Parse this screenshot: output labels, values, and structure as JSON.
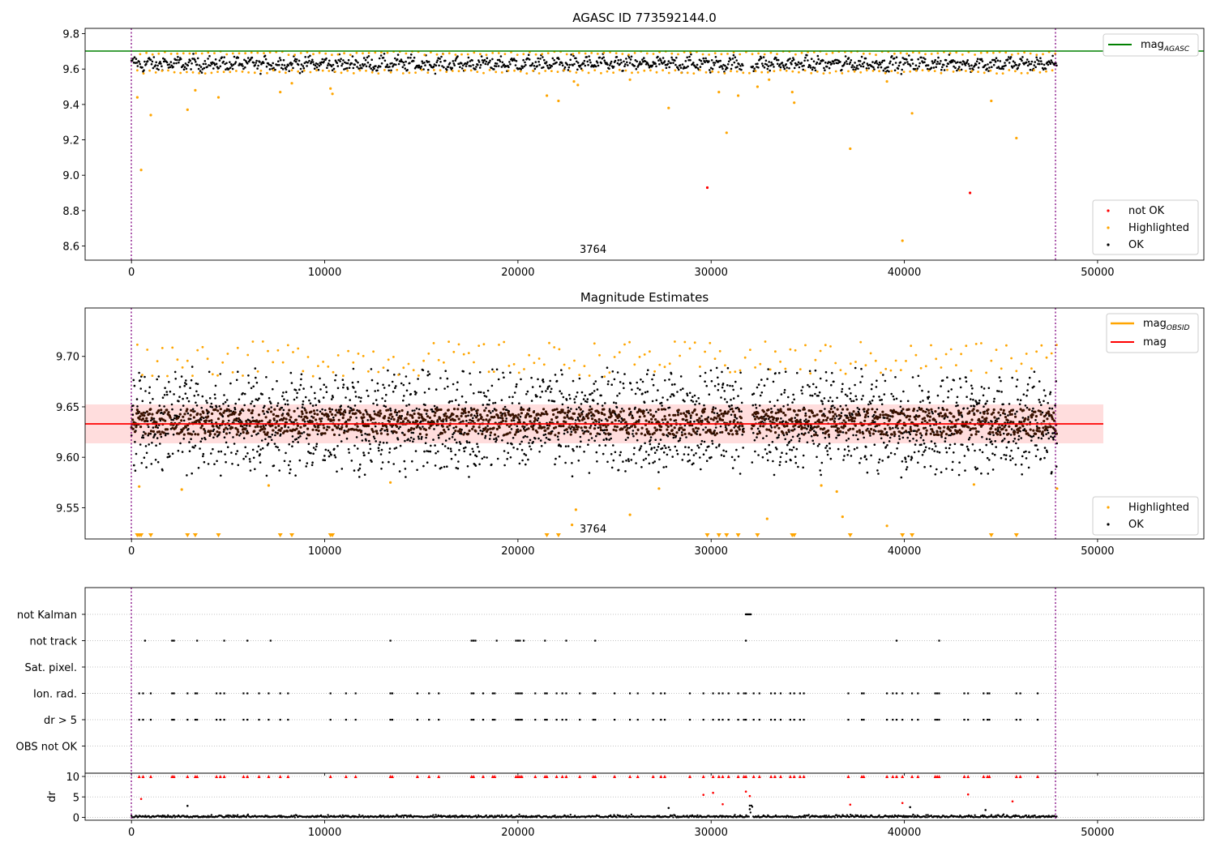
{
  "chart_data": [
    {
      "type": "scatter",
      "title": "AGASC ID 773592144.0",
      "xlim": [
        -2400,
        55500
      ],
      "ylim": [
        8.52,
        9.83
      ],
      "xticks": [
        0,
        10000,
        20000,
        30000,
        40000,
        50000
      ],
      "yticks": [
        8.6,
        8.8,
        9.0,
        9.2,
        9.4,
        9.6,
        9.8
      ],
      "ytick_labels": [
        "8.6",
        "8.8",
        "9.0",
        "9.2",
        "9.4",
        "9.6",
        "9.8"
      ],
      "grid": false,
      "annotation": {
        "text": "3764",
        "x": 23200
      },
      "vlines": {
        "x": [
          0,
          47900
        ],
        "style": "dotted",
        "color": "#800080"
      },
      "hline": {
        "name": "mag_AGASC",
        "label_main": "mag",
        "label_sub": "AGASC",
        "y": 9.7,
        "color": "#008000"
      },
      "ok_band": {
        "center": 9.63,
        "amp": 0.025,
        "noise": 0.018
      },
      "points_highlighted": [
        [
          500,
          9.03
        ],
        [
          1000,
          9.34
        ],
        [
          2900,
          9.37
        ],
        [
          3300,
          9.48
        ],
        [
          4500,
          9.44
        ],
        [
          7700,
          9.47
        ],
        [
          8300,
          9.52
        ],
        [
          10300,
          9.49
        ],
        [
          10400,
          9.46
        ],
        [
          21500,
          9.45
        ],
        [
          22100,
          9.42
        ],
        [
          22900,
          9.53
        ],
        [
          23100,
          9.51
        ],
        [
          25800,
          9.54
        ],
        [
          27800,
          9.38
        ],
        [
          30400,
          9.47
        ],
        [
          30800,
          9.24
        ],
        [
          31400,
          9.45
        ],
        [
          32400,
          9.5
        ],
        [
          33000,
          9.54
        ],
        [
          34200,
          9.47
        ],
        [
          34300,
          9.41
        ],
        [
          37200,
          9.15
        ],
        [
          39100,
          9.53
        ],
        [
          39900,
          8.63
        ],
        [
          40400,
          9.35
        ],
        [
          44500,
          9.42
        ],
        [
          45800,
          9.21
        ],
        [
          300,
          9.44
        ]
      ],
      "points_not_ok": [
        [
          29800,
          8.93
        ],
        [
          43400,
          8.9
        ]
      ],
      "legend_upper": {
        "position": "upper-right",
        "entries": [
          "mag_AGASC"
        ]
      },
      "legend_lower": {
        "position": "lower-right",
        "entries": [
          "not OK",
          "Highlighted",
          "OK"
        ]
      },
      "colors": {
        "ok": "#000000",
        "highlighted": "#ffa500",
        "not_ok": "#ff0000"
      }
    },
    {
      "type": "scatter",
      "title": "Magnitude Estimates",
      "xlim": [
        -2400,
        55500
      ],
      "ylim": [
        9.519,
        9.748
      ],
      "xticks": [
        0,
        10000,
        20000,
        30000,
        40000,
        50000
      ],
      "yticks": [
        9.55,
        9.6,
        9.65,
        9.7
      ],
      "ytick_labels": [
        "9.55",
        "9.60",
        "9.65",
        "9.70"
      ],
      "grid": false,
      "annotation": {
        "text": "3764",
        "x": 23200
      },
      "vlines": {
        "x": [
          0,
          47900
        ],
        "style": "dotted",
        "color": "#800080"
      },
      "mag_line": {
        "name": "mag",
        "y": 9.634,
        "color": "#ff0000",
        "x_range": [
          -2400,
          50300
        ]
      },
      "mag_band": {
        "y_range": [
          9.615,
          9.654
        ],
        "color": "#ffdddd",
        "x_range": [
          -2400,
          50300
        ]
      },
      "mag_obsid": {
        "name": "mag_OBSID",
        "label_main": "mag",
        "label_sub": "OBSID",
        "color": "#ffa500"
      },
      "ok_band": {
        "center": 9.635,
        "amp": 0.03,
        "noise": 0.022
      },
      "points_highlighted": [
        [
          400,
          9.571
        ],
        [
          2600,
          9.568
        ],
        [
          7100,
          9.572
        ],
        [
          13400,
          9.575
        ],
        [
          23000,
          9.548
        ],
        [
          22800,
          9.533
        ],
        [
          25800,
          9.543
        ],
        [
          27300,
          9.569
        ],
        [
          32900,
          9.539
        ],
        [
          35700,
          9.572
        ],
        [
          36500,
          9.566
        ],
        [
          36800,
          9.541
        ],
        [
          39100,
          9.532
        ],
        [
          43600,
          9.573
        ],
        [
          47900,
          9.569
        ]
      ],
      "off_scale_markers_x": [
        300,
        400,
        500,
        1000,
        2900,
        3300,
        4500,
        7700,
        8300,
        10300,
        10400,
        21500,
        22100,
        29800,
        30400,
        30800,
        31400,
        32400,
        34200,
        34300,
        37200,
        39900,
        40400,
        44500,
        45800
      ],
      "legend_upper": {
        "position": "upper-right",
        "entries": [
          "mag_OBSID",
          "mag"
        ]
      },
      "legend_lower": {
        "position": "lower-right",
        "entries": [
          "Highlighted",
          "OK"
        ]
      },
      "colors": {
        "ok": "#000000",
        "highlighted": "#ffa500",
        "ok_core": "#3a1200"
      }
    },
    {
      "type": "scatter",
      "title": "",
      "xlim": [
        -2400,
        55500
      ],
      "xticks": [
        0,
        10000,
        20000,
        30000,
        40000,
        50000
      ],
      "grid": true,
      "vlines": {
        "x": [
          0,
          47900
        ],
        "style": "dotted",
        "color": "#800080"
      },
      "flag_categories": [
        "not Kalman",
        "not track",
        "Sat. pixel.",
        "Ion. rad.",
        "dr > 5",
        "OBS not OK"
      ],
      "flag_points": {
        "not Kalman": [
          31800,
          31850,
          31900,
          31950,
          32000,
          32050
        ],
        "not track": [
          700,
          2100,
          2200,
          3400,
          4800,
          6000,
          7200,
          13400,
          17600,
          17700,
          17800,
          18900,
          19900,
          20000,
          20100,
          20300,
          21400,
          22500,
          24000,
          31800,
          39600,
          41800
        ],
        "Sat. pixel.": [],
        "Ion. rad.": [
          400,
          600,
          1000,
          2100,
          2200,
          2900,
          3300,
          3400,
          4400,
          4600,
          4800,
          5800,
          6000,
          6600,
          7100,
          7700,
          8100,
          10300,
          11100,
          11600,
          13400,
          13500,
          14800,
          15400,
          15900,
          17600,
          17700,
          18200,
          18700,
          18800,
          19900,
          20000,
          20100,
          20200,
          20900,
          21400,
          21500,
          22000,
          22300,
          22500,
          23200,
          23900,
          24000,
          25000,
          25800,
          26200,
          27000,
          27400,
          27600,
          28900,
          29600,
          30100,
          30400,
          30600,
          30900,
          31400,
          31700,
          31800,
          32200,
          32500,
          33100,
          33300,
          33600,
          34100,
          34300,
          34600,
          34800,
          37100,
          37800,
          37900,
          39100,
          39400,
          39600,
          39900,
          40400,
          40700,
          41600,
          41700,
          41800,
          43100,
          43300,
          44100,
          44300,
          44400,
          45800,
          46000,
          46900
        ],
        "dr > 5": [
          400,
          600,
          1000,
          2100,
          2200,
          2900,
          3300,
          3400,
          4400,
          4600,
          4800,
          5800,
          6000,
          6600,
          7100,
          7700,
          8100,
          10300,
          11100,
          11600,
          13400,
          13500,
          14800,
          15400,
          15900,
          17600,
          17700,
          18200,
          18700,
          18800,
          19900,
          20000,
          20100,
          20200,
          20900,
          21400,
          21500,
          22000,
          22300,
          22500,
          23200,
          23900,
          24000,
          25000,
          25800,
          26200,
          27000,
          27400,
          27600,
          28900,
          29600,
          30100,
          30400,
          30600,
          30900,
          31400,
          31700,
          31800,
          32200,
          32500,
          33100,
          33300,
          33600,
          34100,
          34300,
          34600,
          34800,
          37100,
          37800,
          37900,
          39100,
          39400,
          39600,
          39900,
          40400,
          40700,
          41600,
          41700,
          41800,
          43100,
          43300,
          44100,
          44300,
          44400,
          45800,
          46000,
          46900
        ],
        "OBS not OK": []
      },
      "colors": {
        "flag": "#000000"
      }
    },
    {
      "type": "scatter",
      "title": "",
      "ylabel": "dr",
      "xlim": [
        -2400,
        55500
      ],
      "ylim": [
        -0.7,
        10.8
      ],
      "xticks": [
        0,
        10000,
        20000,
        30000,
        40000,
        50000
      ],
      "xtick_labels": [
        "0",
        "10000",
        "20000",
        "30000",
        "40000",
        "50000"
      ],
      "yticks": [
        0,
        5,
        10
      ],
      "ytick_labels": [
        "0",
        "5",
        "10"
      ],
      "grid": true,
      "vlines": {
        "x": [
          0,
          47900
        ],
        "style": "dotted",
        "color": "#800080"
      },
      "clipped_markers_x": [
        400,
        600,
        1000,
        2100,
        2200,
        2900,
        3300,
        3400,
        4400,
        4600,
        4800,
        5800,
        6000,
        6600,
        7100,
        7700,
        8100,
        10300,
        11100,
        11600,
        13400,
        13500,
        14800,
        15400,
        15900,
        17600,
        17700,
        18200,
        18700,
        18800,
        19900,
        20000,
        20100,
        20200,
        20900,
        21400,
        21500,
        22000,
        22300,
        22500,
        23200,
        23900,
        24000,
        25000,
        25800,
        26200,
        27000,
        27400,
        27600,
        28900,
        29600,
        30100,
        30400,
        30600,
        30900,
        31400,
        31700,
        31800,
        32200,
        32500,
        33100,
        33300,
        33600,
        34100,
        34300,
        34600,
        34800,
        37100,
        37800,
        37900,
        39100,
        39400,
        39600,
        39900,
        40400,
        40700,
        41600,
        41700,
        41800,
        43100,
        43300,
        44100,
        44300,
        44400,
        45800,
        46000,
        46900
      ],
      "points_red": [
        [
          500,
          4.5
        ],
        [
          29600,
          5.5
        ],
        [
          30100,
          6.0
        ],
        [
          30600,
          3.2
        ],
        [
          31800,
          6.3
        ],
        [
          32000,
          5.2
        ],
        [
          37200,
          3.1
        ],
        [
          39900,
          3.5
        ],
        [
          43300,
          5.6
        ],
        [
          45600,
          3.9
        ]
      ],
      "points_black": [
        [
          2900,
          2.8
        ],
        [
          27800,
          2.3
        ],
        [
          40300,
          2.5
        ],
        [
          44200,
          1.8
        ],
        [
          32000,
          2.0
        ]
      ],
      "colors": {
        "ok": "#000000",
        "red": "#ff0000"
      }
    }
  ]
}
